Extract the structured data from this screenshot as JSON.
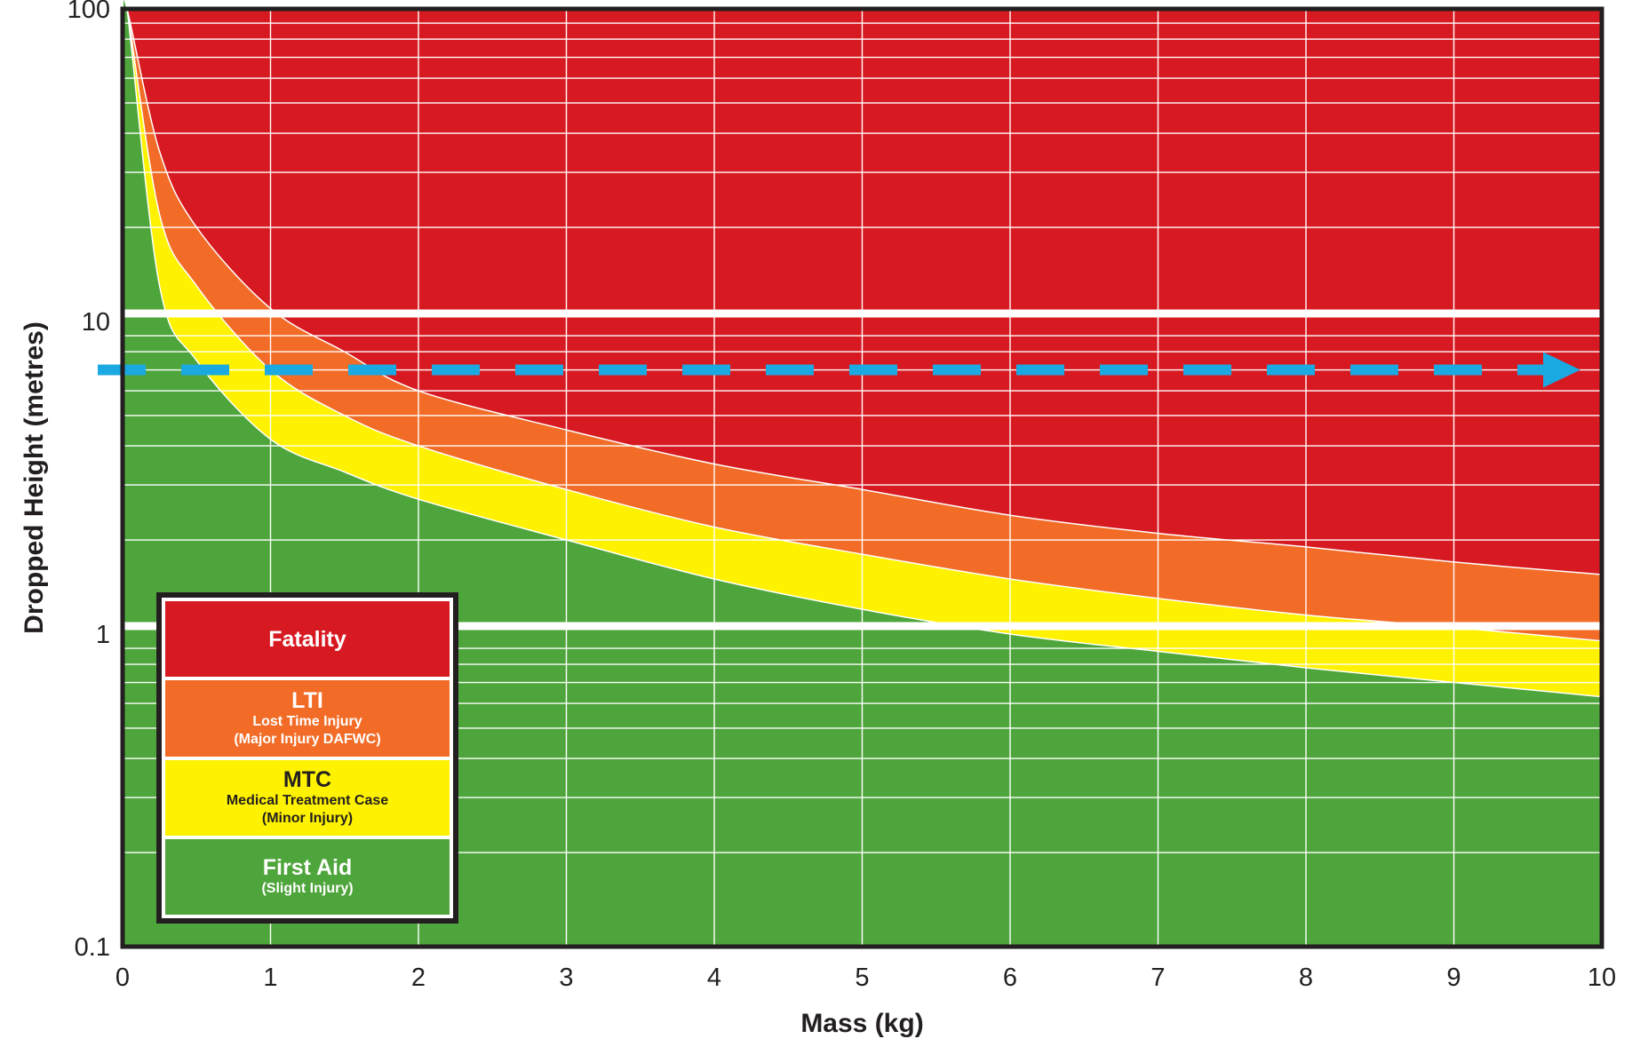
{
  "chart_data": {
    "type": "area",
    "xlabel": "Mass (kg)",
    "ylabel": "Dropped Height (metres)",
    "xlim": [
      0,
      10
    ],
    "ylim": [
      0.1,
      100
    ],
    "y_scale": "log",
    "grid": true,
    "x_ticks": [
      "0",
      "1",
      "2",
      "3",
      "4",
      "5",
      "6",
      "7",
      "8",
      "9",
      "10"
    ],
    "y_ticks": [
      "0.1",
      "1",
      "10",
      "100"
    ],
    "legend_placement": "bottom-left",
    "colors": {
      "fatality": "#d71a21",
      "lti": "#f26c27",
      "mtc": "#fff200",
      "first_aid": "#4ea53b",
      "arrow": "#1ba9e1",
      "grid": "#ffffff",
      "frame": "#231f20"
    },
    "zones": [
      {
        "key": "fatality",
        "label": "Fatality",
        "description": [],
        "color": "#d71a21",
        "text_color": "#ffffff"
      },
      {
        "key": "lti",
        "label": "LTI",
        "description": [
          "Lost Time Injury",
          "(Major Injury DAFWC)"
        ],
        "color": "#f26c27",
        "text_color": "#ffffff"
      },
      {
        "key": "mtc",
        "label": "MTC",
        "description": [
          "Medical Treatment Case",
          "(Minor Injury)"
        ],
        "color": "#fff200",
        "text_color": "#231f20"
      },
      {
        "key": "first_aid",
        "label": "First Aid",
        "description": [
          "(Slight Injury)"
        ],
        "color": "#4ea53b",
        "text_color": "#ffffff"
      }
    ],
    "boundaries": [
      {
        "name": "LTI / Fatality",
        "x": [
          0.03,
          0.25,
          0.5,
          1,
          1.5,
          2,
          3,
          4,
          5,
          6,
          7,
          8,
          9,
          10
        ],
        "y": [
          90,
          35,
          20,
          11,
          8,
          6,
          4.5,
          3.5,
          2.9,
          2.4,
          2.1,
          1.9,
          1.7,
          1.55
        ]
      },
      {
        "name": "MTC / LTI",
        "x": [
          0.03,
          0.25,
          0.5,
          1,
          1.5,
          2,
          3,
          4,
          5,
          6,
          7,
          8,
          9,
          10
        ],
        "y": [
          70,
          22,
          13,
          7,
          5,
          4,
          2.9,
          2.2,
          1.8,
          1.5,
          1.3,
          1.15,
          1.05,
          0.95
        ]
      },
      {
        "name": "First Aid / MTC",
        "x": [
          0.03,
          0.25,
          0.5,
          1,
          1.5,
          2,
          3,
          4,
          5,
          6,
          7,
          8,
          9,
          10
        ],
        "y": [
          40,
          13,
          7.5,
          4.2,
          3.3,
          2.7,
          2.0,
          1.5,
          1.2,
          1.0,
          0.88,
          0.78,
          0.7,
          0.63
        ]
      }
    ],
    "reference_lines": [
      {
        "y": 10,
        "style": "solid-white"
      },
      {
        "y": 1,
        "style": "solid-white"
      }
    ],
    "arrow": {
      "y": 7,
      "x_start": 0,
      "x_end": 10,
      "style": "dashed",
      "direction": "right"
    }
  }
}
